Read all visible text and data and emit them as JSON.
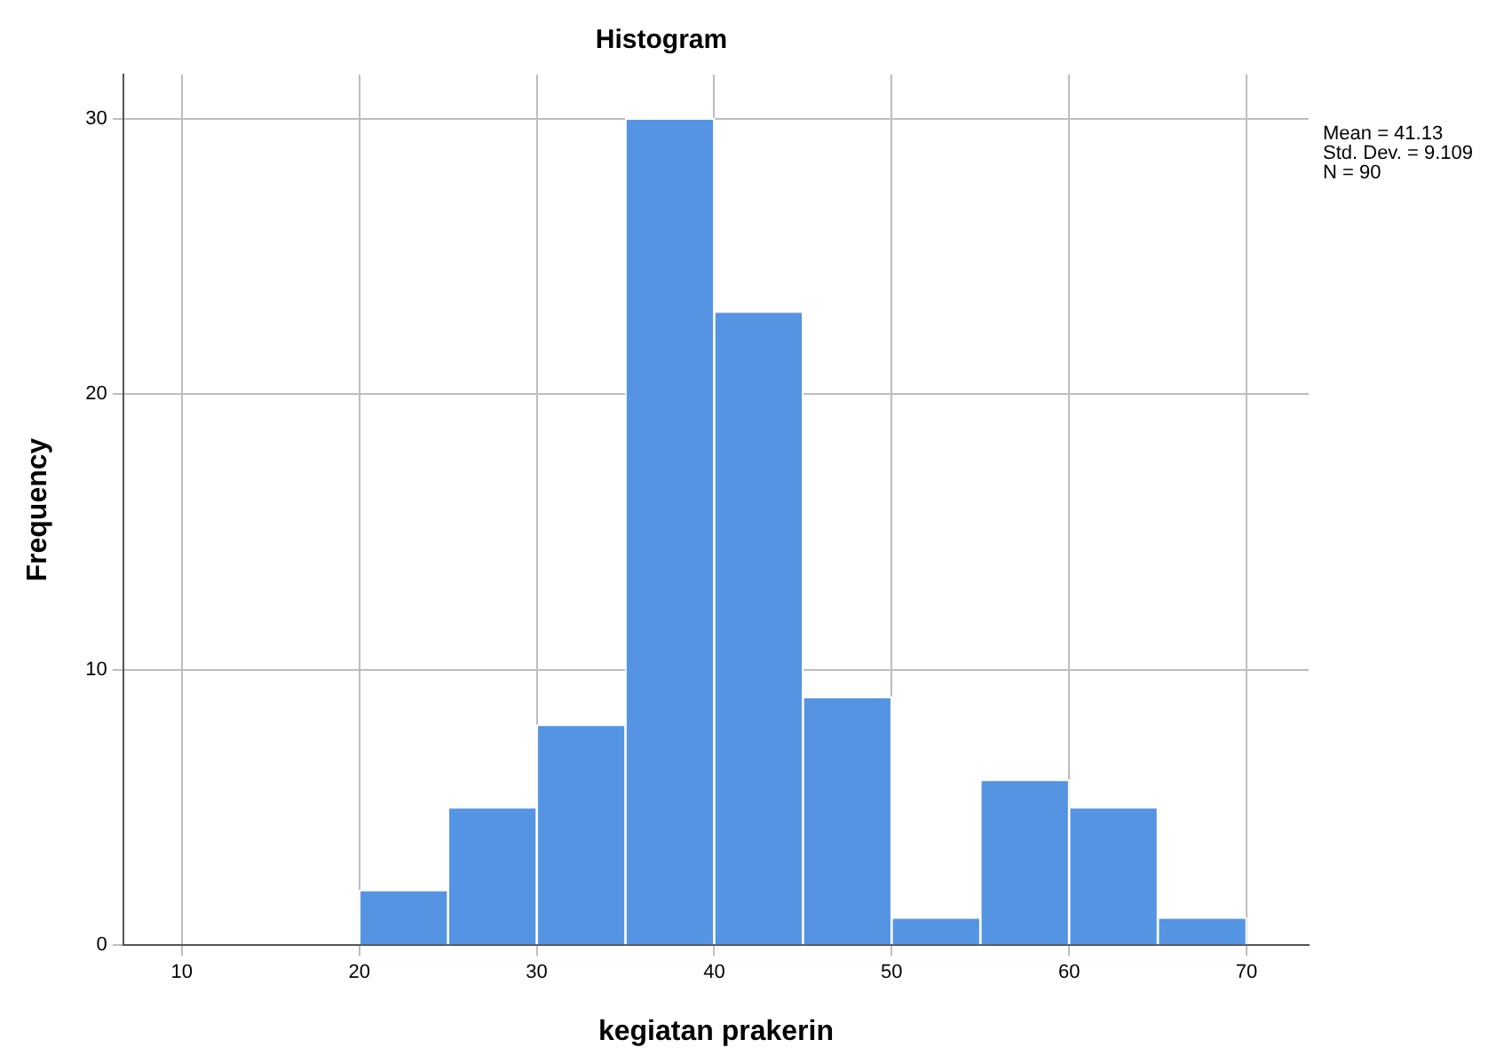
{
  "chart_data": {
    "type": "histogram",
    "title": "Histogram",
    "xlabel": "kegiatan prakerin",
    "ylabel": "Frequency",
    "bins": [
      20,
      25,
      30,
      35,
      40,
      45,
      50,
      55,
      60,
      65,
      70
    ],
    "values": [
      2,
      5,
      8,
      30,
      23,
      9,
      1,
      6,
      5,
      1
    ],
    "color": "#5594e3",
    "xlim": [
      6.7,
      73.5
    ],
    "xticks": [
      10,
      20,
      30,
      40,
      50,
      60,
      70
    ],
    "ylim": [
      0,
      31.6
    ],
    "yticks": [
      0,
      10,
      20,
      30
    ],
    "grid": true,
    "legend": false,
    "annotations": [
      "Mean = 41.13",
      "Std. Dev. = 9.109",
      "N = 90"
    ]
  }
}
